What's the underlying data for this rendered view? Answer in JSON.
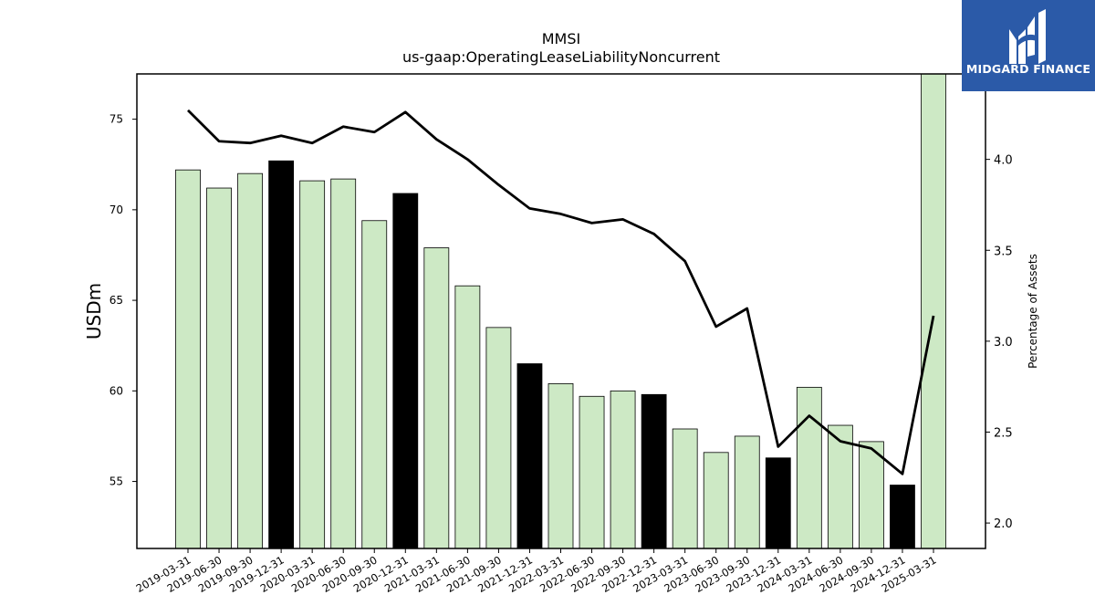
{
  "chart_data": {
    "type": "bar",
    "title": "MMSI",
    "subtitle": "us-gaap:OperatingLeaseLiabilityNoncurrent",
    "ylabel": "USDm",
    "y2label": "Percentage of Assets",
    "ylim": [
      51.3,
      77.5
    ],
    "y2lim": [
      1.86,
      4.47
    ],
    "yticks": [
      55,
      60,
      65,
      70,
      75
    ],
    "y2ticks": [
      2.0,
      2.5,
      3.0,
      3.5,
      4.0
    ],
    "categories": [
      "2019-03-31",
      "2019-06-30",
      "2019-09-30",
      "2019-12-31",
      "2020-03-31",
      "2020-06-30",
      "2020-09-30",
      "2020-12-31",
      "2021-03-31",
      "2021-06-30",
      "2021-09-30",
      "2021-12-31",
      "2022-03-31",
      "2022-06-30",
      "2022-09-30",
      "2022-12-31",
      "2023-03-31",
      "2023-06-30",
      "2023-09-30",
      "2023-12-31",
      "2024-03-31",
      "2024-06-30",
      "2024-09-30",
      "2024-12-31",
      "2025-03-31"
    ],
    "series": [
      {
        "kind": "bar",
        "axis": "left",
        "values": [
          72.2,
          71.2,
          72.0,
          72.7,
          71.6,
          71.7,
          69.4,
          70.9,
          67.9,
          65.8,
          63.5,
          61.5,
          60.4,
          59.7,
          60.0,
          59.8,
          57.9,
          56.6,
          57.5,
          56.3,
          60.2,
          58.1,
          57.2,
          54.8,
          77.5
        ],
        "highlight": [
          false,
          false,
          false,
          true,
          false,
          false,
          false,
          true,
          false,
          false,
          false,
          true,
          false,
          false,
          false,
          true,
          false,
          false,
          false,
          true,
          false,
          false,
          false,
          true,
          false
        ]
      },
      {
        "kind": "line",
        "axis": "right",
        "values": [
          4.27,
          4.1,
          4.09,
          4.13,
          4.09,
          4.18,
          4.15,
          4.26,
          4.11,
          4.0,
          3.86,
          3.73,
          3.7,
          3.65,
          3.67,
          3.59,
          3.44,
          3.08,
          3.18,
          2.42,
          2.59,
          2.45,
          2.41,
          2.27,
          3.14
        ]
      }
    ],
    "colors": {
      "bar": "#cde9c5",
      "bar_highlight": "#000000",
      "line": "#000000"
    }
  },
  "logo": {
    "text": "MIDGARD FINANCE",
    "icon": "midgard-logo-icon",
    "background": "#2b5aa8"
  }
}
